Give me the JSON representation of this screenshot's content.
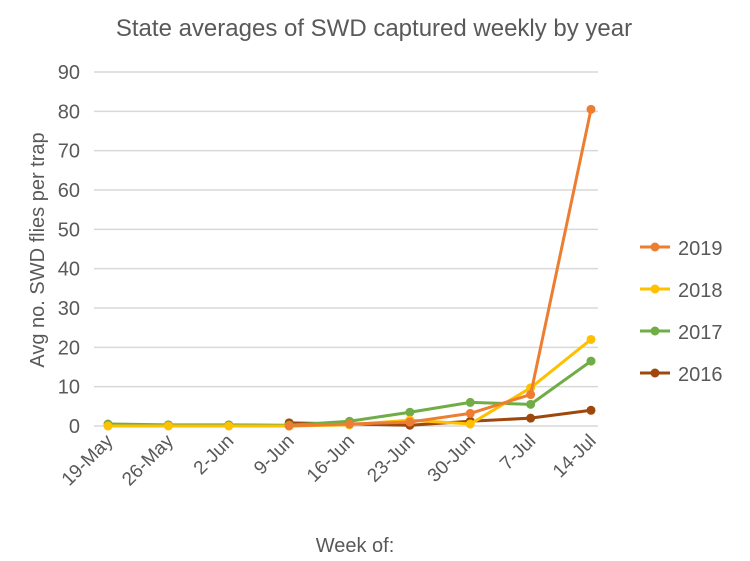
{
  "chart_data": {
    "type": "line",
    "title": "State averages of SWD captured weekly by year",
    "xlabel": "Week of:",
    "ylabel": "Avg no. SWD flies per trap",
    "ylim": [
      0,
      90
    ],
    "yticks": [
      0,
      10,
      20,
      30,
      40,
      50,
      60,
      70,
      80,
      90
    ],
    "categories": [
      "19-May",
      "26-May",
      "2-Jun",
      "9-Jun",
      "16-Jun",
      "23-Jun",
      "30-Jun",
      "7-Jul",
      "14-Jul"
    ],
    "legend_position": "right",
    "grid": true,
    "series": [
      {
        "name": "2019",
        "color": "#ED7D31",
        "values": [
          null,
          null,
          null,
          0,
          0.5,
          1,
          3.2,
          8,
          80.5
        ]
      },
      {
        "name": "2018",
        "color": "#FFC000",
        "values": [
          0,
          0,
          0,
          0,
          0.3,
          1.5,
          0.5,
          9.7,
          22
        ]
      },
      {
        "name": "2017",
        "color": "#70AD47",
        "values": [
          0.5,
          0.3,
          0.3,
          0.2,
          1.2,
          3.5,
          6,
          5.5,
          16.5
        ]
      },
      {
        "name": "2016",
        "color": "#9E480E",
        "values": [
          null,
          null,
          null,
          0.8,
          0.5,
          0.2,
          1.2,
          2,
          4
        ]
      }
    ]
  }
}
